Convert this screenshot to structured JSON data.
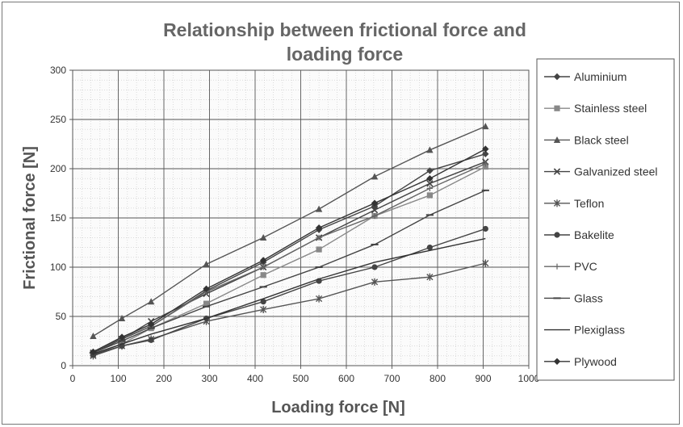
{
  "chart_data": {
    "type": "line",
    "title_lines": [
      "Relationship between frictional force and",
      "loading force"
    ],
    "xlabel": "Loading force [N]",
    "ylabel": "Frictional force [N]",
    "xlim": [
      0,
      1000
    ],
    "ylim": [
      0,
      300
    ],
    "xticks": [
      "0",
      "100",
      "200",
      "300",
      "400",
      "500",
      "600",
      "700",
      "800",
      "900",
      "1000"
    ],
    "yticks": [
      "0",
      "50",
      "100",
      "150",
      "200",
      "250",
      "300"
    ],
    "grid": true,
    "legend_position": "right",
    "x": [
      45,
      108,
      172,
      293,
      418,
      540,
      662,
      783,
      905
    ],
    "series": [
      {
        "name": "Aluminium",
        "marker": "diamond",
        "color": "#444444",
        "values": [
          13,
          27,
          40,
          76,
          105,
          138,
          162,
          198,
          215
        ]
      },
      {
        "name": "Stainless steel",
        "marker": "square",
        "color": "#888888",
        "values": [
          11,
          22,
          38,
          63,
          92,
          118,
          152,
          173,
          202
        ]
      },
      {
        "name": "Black steel",
        "marker": "triangle",
        "color": "#555555",
        "values": [
          30,
          48,
          65,
          103,
          130,
          159,
          192,
          219,
          243
        ]
      },
      {
        "name": "Galvanized steel",
        "marker": "x",
        "color": "#444444",
        "values": [
          13,
          27,
          45,
          73,
          100,
          130,
          158,
          185,
          207
        ]
      },
      {
        "name": "Teflon",
        "marker": "star",
        "color": "#555555",
        "values": [
          10,
          20,
          27,
          45,
          57,
          68,
          85,
          90,
          104
        ]
      },
      {
        "name": "Bakelite",
        "marker": "circle",
        "color": "#444444",
        "values": [
          11,
          20,
          26,
          48,
          65,
          86,
          100,
          120,
          139
        ]
      },
      {
        "name": "PVC",
        "marker": "plus",
        "color": "#666666",
        "values": [
          14,
          28,
          40,
          75,
          100,
          130,
          152,
          180,
          205
        ]
      },
      {
        "name": "Glass",
        "marker": "dash",
        "color": "#444444",
        "values": [
          13,
          25,
          38,
          60,
          80,
          100,
          123,
          153,
          178
        ]
      },
      {
        "name": "Plexiglass",
        "marker": "none",
        "color": "#333333",
        "values": [
          12,
          22,
          32,
          48,
          68,
          88,
          105,
          117,
          129
        ]
      },
      {
        "name": "Plywood",
        "marker": "diamond",
        "color": "#333333",
        "values": [
          14,
          29,
          42,
          78,
          107,
          140,
          165,
          190,
          220
        ]
      }
    ]
  }
}
